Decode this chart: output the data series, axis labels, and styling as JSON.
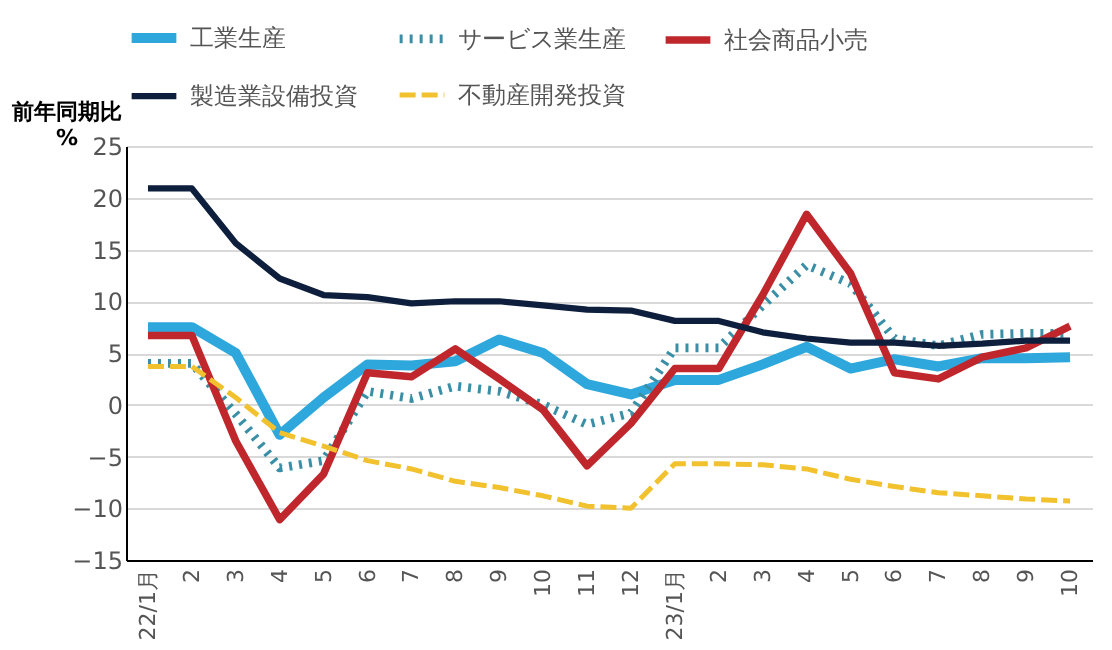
{
  "chart_data": {
    "type": "line",
    "ylabel": "前年同期比\n%",
    "categories": [
      "22/1月",
      "2",
      "3",
      "4",
      "5",
      "6",
      "7",
      "8",
      "9",
      "10",
      "11",
      "12",
      "23/1月",
      "2",
      "3",
      "4",
      "5",
      "6",
      "7",
      "8",
      "9",
      "10"
    ],
    "ylim": [
      -15,
      25
    ],
    "yticks": [
      -15,
      -10,
      -5,
      0,
      5,
      10,
      15,
      20,
      25
    ],
    "grid": "y",
    "legend": "top",
    "series": [
      {
        "name": "工業生産",
        "color": "#2ea8dc",
        "line_style": "solid",
        "values": [
          7.5,
          7.5,
          5,
          -2.9,
          0.7,
          3.9,
          3.8,
          4.2,
          6.3,
          5,
          2,
          1,
          2.4,
          2.4,
          3.9,
          5.6,
          3.5,
          4.4,
          3.7,
          4.5,
          4.5,
          4.6
        ]
      },
      {
        "name": "サービス業生産",
        "color": "#3a8fa6",
        "line_style": "dotted",
        "values": [
          4,
          4,
          -0.9,
          -6.1,
          -5.4,
          1.3,
          0.6,
          1.8,
          1.3,
          0,
          -1.9,
          -0.8,
          5.5,
          5.5,
          9.6,
          13.5,
          11.7,
          6.4,
          5.7,
          6.8,
          6.9,
          6.9
        ]
      },
      {
        "name": "社会商品小売",
        "color": "#c0272d",
        "line_style": "solid",
        "values": [
          6.7,
          6.7,
          -3.5,
          -11.1,
          -6.7,
          3.1,
          2.7,
          5.4,
          2.5,
          -0.5,
          -5.9,
          -1.8,
          3.5,
          3.5,
          10.6,
          18.4,
          12.7,
          3.1,
          2.5,
          4.6,
          5.5,
          7.6
        ]
      },
      {
        "name": "製造業設備投資",
        "color": "#0d1f3c",
        "line_style": "solid",
        "values": [
          20.9,
          20.9,
          15.6,
          12.2,
          10.6,
          10.4,
          9.8,
          10,
          10,
          9.6,
          9.2,
          9.1,
          8.1,
          8.1,
          7,
          6.4,
          6,
          6,
          5.7,
          5.9,
          6.2,
          6.2
        ]
      },
      {
        "name": "不動産開発投資",
        "color": "#f2c12e",
        "line_style": "dashed",
        "values": [
          3.7,
          3.7,
          0.7,
          -2.7,
          -4,
          -5.4,
          -6.2,
          -7.4,
          -8,
          -8.8,
          -9.8,
          -10,
          -5.7,
          -5.7,
          -5.8,
          -6.2,
          -7.2,
          -7.9,
          -8.5,
          -8.8,
          -9.1,
          -9.3
        ]
      }
    ]
  }
}
